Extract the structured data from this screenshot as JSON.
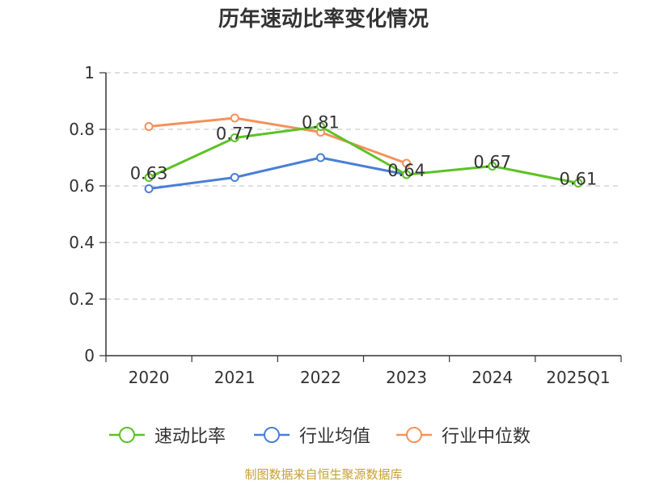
{
  "chart_data": {
    "type": "line",
    "title": "历年速动比率变化情况",
    "categories": [
      "2020",
      "2021",
      "2022",
      "2023",
      "2024",
      "2025Q1"
    ],
    "y_ticks": [
      "0",
      "0.2",
      "0.4",
      "0.6",
      "0.8",
      "1"
    ],
    "ylim": [
      0,
      1
    ],
    "grid": "horizontal dashed",
    "legend_position": "bottom",
    "series": [
      {
        "name": "速动比率",
        "color": "#5cc224",
        "values": [
          0.63,
          0.77,
          0.81,
          0.64,
          0.67,
          0.61
        ],
        "labels": [
          "0.63",
          "0.77",
          "0.81",
          "0.64",
          "0.67",
          "0.61"
        ]
      },
      {
        "name": "行业均值",
        "color": "#4a7fd6",
        "values": [
          0.59,
          0.63,
          0.7,
          0.64,
          null,
          null
        ]
      },
      {
        "name": "行业中位数",
        "color": "#f5915a",
        "values": [
          0.81,
          0.84,
          0.79,
          0.68,
          null,
          null
        ]
      }
    ]
  },
  "footer": {
    "source": "制图数据来自恒生聚源数据库"
  }
}
